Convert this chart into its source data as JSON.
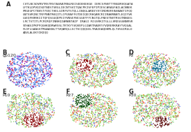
{
  "panel_A_label": "A",
  "panel_B_label": "B",
  "panel_C_label": "C",
  "panel_D_label": "D",
  "panel_E_label": "E",
  "panel_F_label": "F",
  "panel_G_label": "G",
  "panel_B_sublabel": "gp120",
  "panel_C_sublabel": "P1",
  "panel_D_sublabel": "P2",
  "panel_E_sublabel": "P10",
  "panel_F_sublabel": "P27",
  "panel_G_sublabel": "P30",
  "sequence_text": "CVTLNCSDVRVTRSTRSTAGRATRNLREISEDEKEKGE IERCSFNVTTYNGDRVQGATALFTKLDPVQISDTNDSTSRGLIECNTSVITQACPKISFEPIPIESCARAGFAILACNNEKFRGEGPCTNVSTYVQCTHELGIRFVYSTQLLINQGLAREEYVYIRDRERFASNAKTIFQQLNTSVRINCTRFPNNTRKQITLCPGRAFFGTDEIQDCRHQARCRIIRAKMANTLEQIYVKLGEQFKRRKIITQFQSGGQDPEIYVNSEFNCGGEFFYCNGTQLFNESTNVTRSGTNNGEGLRCTSTITLPCRIRQFINNHQIAMANTAIP IRAGI RCGSRKITGLLLVRDGGGNNRSRSTHASIPKPFQGHKQDRWRSSLTRTKYYVQVEPLGIARTRAERYYVQRERKRAYYVQGALFLOFLGAAGSTMGAASNLTTVQARQLLSCTVCQQQGELTRAIEAQDHMLQLTVSGIRGLOADVLALEKYIKDQQ",
  "bg_color": "#ffffff",
  "text_color": "#222222",
  "seq_fontsize": 3.2,
  "label_fontsize": 6,
  "sublabel_fontsize": 4.5
}
